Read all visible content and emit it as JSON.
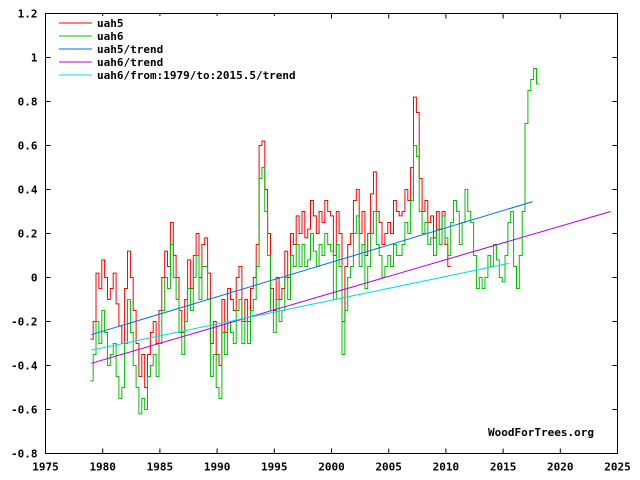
{
  "chart_data": {
    "type": "line",
    "title": "",
    "xlabel": "",
    "ylabel": "",
    "xlim": [
      1975,
      2025
    ],
    "ylim": [
      -0.8,
      1.2
    ],
    "grid": false,
    "legend_position": "top-left",
    "x_ticks": [
      "1975",
      "1980",
      "1985",
      "1990",
      "1995",
      "2000",
      "2005",
      "2010",
      "2015",
      "2020",
      "2025"
    ],
    "y_ticks": [
      "-0.8",
      "-0.6",
      "-0.4",
      "-0.2",
      "0",
      "0.2",
      "0.4",
      "0.6",
      "0.8",
      "1",
      "1.2"
    ],
    "watermark": "WoodForTrees.org",
    "series": [
      {
        "name": "uah5",
        "color": "#ff0000",
        "style": "step",
        "x_start": 1978.917,
        "x_step": 0.25,
        "values": [
          -0.28,
          -0.2,
          0.02,
          -0.05,
          0.08,
          0.0,
          -0.1,
          -0.05,
          0.02,
          -0.12,
          -0.22,
          -0.3,
          -0.05,
          0.12,
          0.0,
          -0.15,
          -0.3,
          -0.45,
          -0.35,
          -0.5,
          -0.35,
          -0.25,
          -0.2,
          -0.3,
          -0.15,
          0.0,
          0.12,
          0.05,
          0.25,
          0.1,
          0.0,
          -0.15,
          -0.25,
          -0.1,
          0.08,
          -0.05,
          0.1,
          0.2,
          0.0,
          0.15,
          0.18,
          0.02,
          -0.3,
          -0.2,
          -0.35,
          -0.4,
          -0.1,
          -0.25,
          -0.05,
          -0.1,
          -0.15,
          0.0,
          0.05,
          -0.2,
          -0.1,
          -0.2,
          -0.05,
          0.0,
          0.15,
          0.6,
          0.62,
          0.4,
          0.2,
          -0.05,
          -0.15,
          0.0,
          -0.1,
          -0.05,
          0.12,
          0.0,
          0.2,
          0.15,
          0.28,
          0.2,
          0.3,
          0.18,
          0.22,
          0.35,
          0.28,
          0.2,
          0.3,
          0.25,
          0.35,
          0.3,
          0.28,
          0.1,
          0.3,
          0.2,
          -0.2,
          0.05,
          0.15,
          0.2,
          0.35,
          0.4,
          0.2,
          0.3,
          0.1,
          0.2,
          0.38,
          0.48,
          0.3,
          0.25,
          0.15,
          0.2,
          0.25,
          0.2,
          0.35,
          0.3,
          0.28,
          0.3,
          0.4,
          0.35,
          0.5,
          0.82,
          0.75,
          0.45,
          0.3,
          0.35,
          0.25,
          0.28,
          0.18,
          0.3,
          0.22,
          0.3,
          0.15,
          0.05
        ]
      },
      {
        "name": "uah6",
        "color": "#00c000",
        "style": "step",
        "x_start": 1978.917,
        "x_step": 0.25,
        "values": [
          -0.47,
          -0.35,
          -0.2,
          -0.3,
          -0.15,
          -0.25,
          -0.4,
          -0.35,
          -0.3,
          -0.45,
          -0.55,
          -0.5,
          -0.3,
          -0.1,
          -0.25,
          -0.4,
          -0.5,
          -0.62,
          -0.55,
          -0.6,
          -0.45,
          -0.4,
          -0.35,
          -0.45,
          -0.3,
          -0.15,
          0.0,
          -0.05,
          0.15,
          0.0,
          -0.1,
          -0.25,
          -0.35,
          -0.2,
          -0.05,
          -0.15,
          0.0,
          0.1,
          -0.1,
          0.05,
          0.05,
          -0.1,
          -0.45,
          -0.35,
          -0.5,
          -0.55,
          -0.25,
          -0.35,
          -0.2,
          -0.25,
          -0.3,
          -0.15,
          -0.1,
          -0.3,
          -0.2,
          -0.3,
          -0.15,
          -0.1,
          0.05,
          0.45,
          0.5,
          0.3,
          0.1,
          -0.15,
          -0.25,
          -0.1,
          -0.2,
          -0.15,
          0.0,
          -0.1,
          0.1,
          0.05,
          0.15,
          0.05,
          0.15,
          0.05,
          0.08,
          0.2,
          0.12,
          0.05,
          0.15,
          0.1,
          0.2,
          0.15,
          0.12,
          -0.1,
          0.15,
          0.05,
          -0.35,
          -0.15,
          0.0,
          0.05,
          0.2,
          0.28,
          0.05,
          0.15,
          -0.05,
          0.05,
          0.2,
          0.3,
          0.15,
          0.1,
          0.0,
          0.05,
          0.1,
          0.05,
          0.15,
          0.1,
          0.1,
          0.15,
          0.25,
          0.2,
          0.35,
          0.6,
          0.55,
          0.3,
          0.2,
          0.25,
          0.15,
          0.18,
          0.1,
          0.22,
          0.15,
          0.28,
          0.18,
          0.1,
          0.25,
          0.35,
          0.3,
          0.15,
          0.25,
          0.4,
          0.3,
          0.25,
          0.1,
          -0.05,
          0.0,
          -0.05,
          0.0,
          0.1,
          0.05,
          0.15,
          0.08,
          0.0,
          -0.02,
          0.1,
          0.25,
          0.3,
          0.05,
          -0.05,
          0.1,
          0.3,
          0.7,
          0.85,
          0.9,
          0.95,
          0.88
        ]
      },
      {
        "name": "uah5/trend",
        "color": "#0070e0",
        "style": "line",
        "x": [
          1979.0,
          2017.6
        ],
        "values": [
          -0.26,
          0.345
        ]
      },
      {
        "name": "uah6/trend",
        "color": "#b000e0",
        "style": "line",
        "x": [
          1979.0,
          2024.4
        ],
        "values": [
          -0.39,
          0.3
        ]
      },
      {
        "name": "uah6/from:1979/to:2015.5/trend",
        "color": "#00e0e0",
        "style": "line",
        "x": [
          1979.0,
          2015.5
        ],
        "values": [
          -0.33,
          0.064
        ]
      }
    ]
  }
}
